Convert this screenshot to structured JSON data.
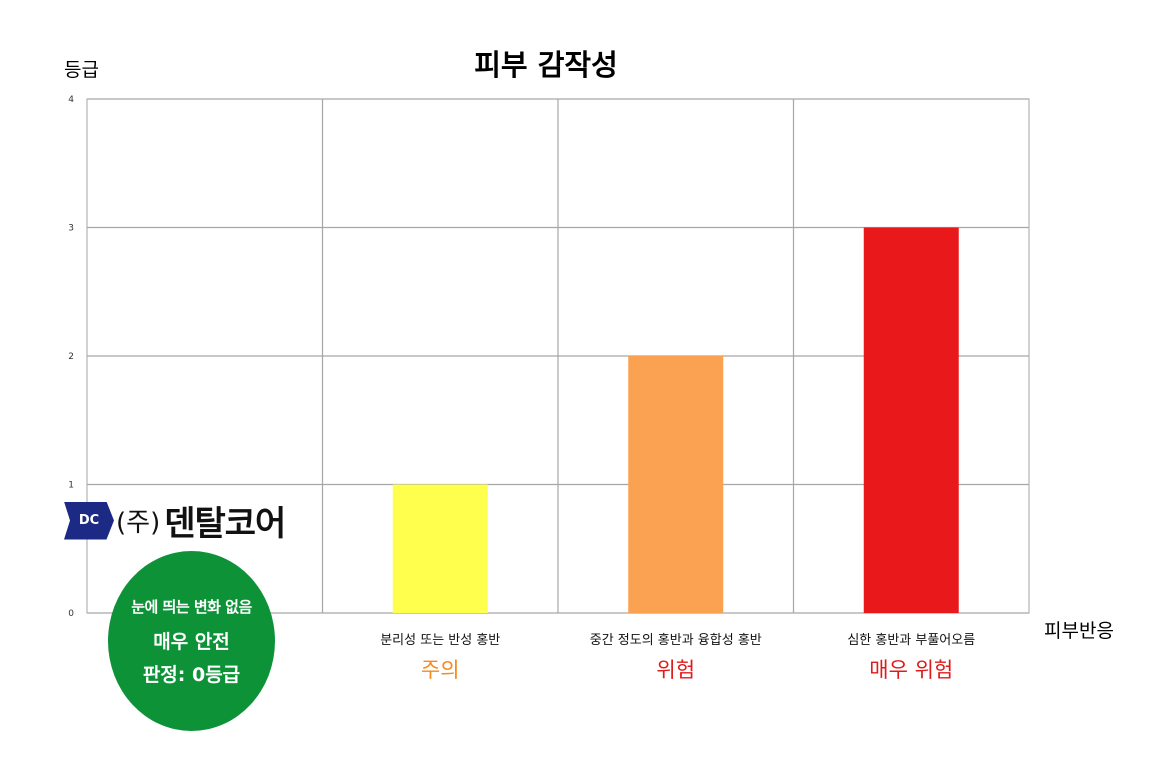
{
  "chart_data": {
    "type": "bar",
    "title": "피부 감작성",
    "ylabel": "등급",
    "xlabel": "피부반응",
    "ylim": [
      0,
      4
    ],
    "yticks": [
      "0",
      "1",
      "2",
      "3",
      "4"
    ],
    "grid": true,
    "categories": [
      {
        "desc": "",
        "level": ""
      },
      {
        "desc": "분리성 또는 반성 홍반",
        "level": "주의"
      },
      {
        "desc": "중간 정도의 홍반과 융합성 홍반",
        "level": "위험"
      },
      {
        "desc": "심한 홍반과 부풀어오름",
        "level": "매우 위험"
      }
    ],
    "values": [
      0,
      1,
      2,
      3
    ],
    "bar_colors": [
      "#ffffff",
      "#ffff4d",
      "#fba152",
      "#e8181b"
    ],
    "level_colors": [
      "#000000",
      "#f58a1f",
      "#e01b1b",
      "#e01b1b"
    ]
  },
  "badge": {
    "line1": "눈에 띄는 변화 없음",
    "line2": "매우 안전",
    "line3": "판정: 0등급",
    "color": "#0d9238"
  },
  "logo": {
    "mark": "DC",
    "prefix": "(주)",
    "name": "덴탈코어",
    "mark_color": "#1d2a85"
  }
}
